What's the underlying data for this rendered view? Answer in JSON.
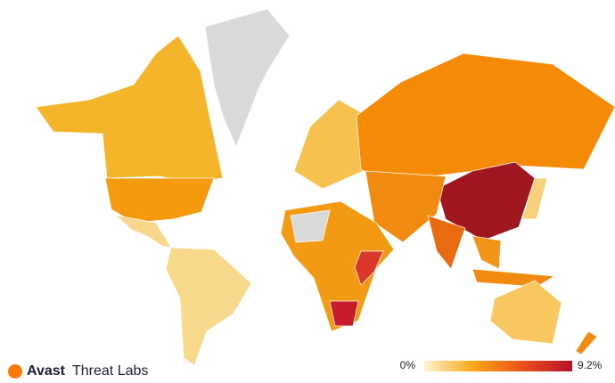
{
  "brand": {
    "name": "Avast",
    "product": "Threat Labs"
  },
  "legend": {
    "min": {
      "value": 0,
      "label": "0%"
    },
    "max": {
      "value": 9.2,
      "label": "9.2%"
    },
    "colors": [
      "#fff3cf",
      "#f7a716",
      "#e9501b",
      "#b5122b"
    ]
  }
}
